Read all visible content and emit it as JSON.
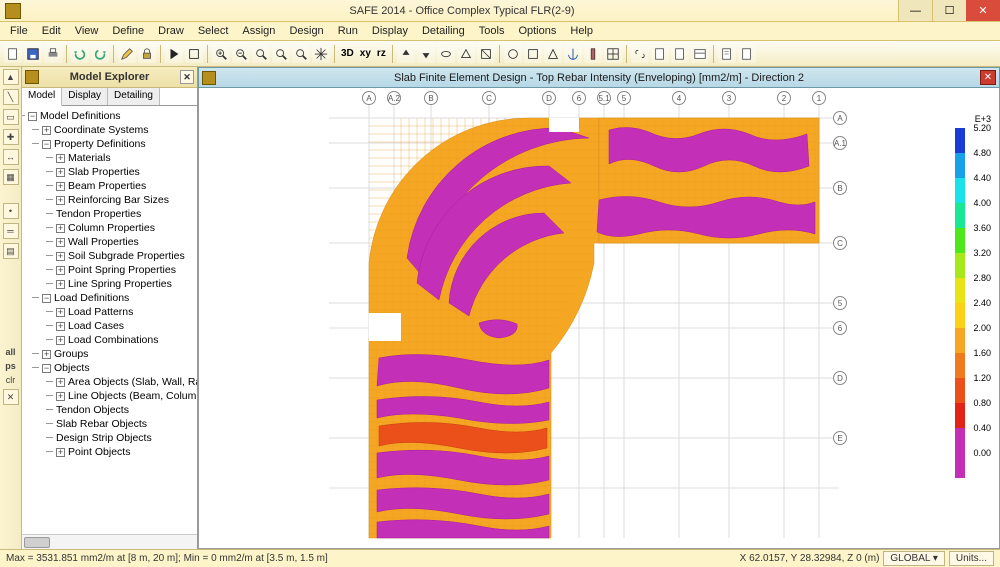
{
  "window": {
    "title": "SAFE 2014 - Office Complex Typical FLR(2-9)",
    "min": "—",
    "max": "☐",
    "close": "✕"
  },
  "menus": [
    "File",
    "Edit",
    "View",
    "Define",
    "Draw",
    "Select",
    "Assign",
    "Design",
    "Run",
    "Display",
    "Detailing",
    "Tools",
    "Options",
    "Help"
  ],
  "toolbar_text": {
    "threeD": "3D",
    "xy": "xy",
    "rz": "rz"
  },
  "explorer": {
    "title": "Model Explorer",
    "tabs": [
      "Model",
      "Display",
      "Detailing"
    ],
    "root": "Model Definitions",
    "items": {
      "coord": "Coordinate Systems",
      "propdef": "Property Definitions",
      "materials": "Materials",
      "slabprop": "Slab Properties",
      "beamprop": "Beam Properties",
      "rebar": "Reinforcing Bar Sizes",
      "tendon": "Tendon Properties",
      "column": "Column Properties",
      "wall": "Wall Properties",
      "soil": "Soil Subgrade Properties",
      "pointspr": "Point Spring Properties",
      "linespr": "Line Spring Properties",
      "loaddef": "Load Definitions",
      "loadpat": "Load Patterns",
      "loadcase": "Load Cases",
      "loadcomb": "Load Combinations",
      "groups": "Groups",
      "objects": "Objects",
      "areaobj": "Area Objects (Slab, Wall, Ramp, Null)",
      "lineobj": "Line Objects (Beam, Column, Brace, Null)",
      "tendonobj": "Tendon Objects",
      "slabrebar": "Slab Rebar Objects",
      "designstrip": "Design Strip Objects",
      "pointobj": "Point Objects"
    }
  },
  "view": {
    "title": "Slab Finite Element Design - Top Rebar Intensity (Enveloping) [mm2/m] - Direction 2",
    "grid_cols": [
      "A",
      "A.2",
      "B",
      "C",
      "D",
      "6",
      "5.1",
      "5",
      "4",
      "3",
      "2",
      "1"
    ],
    "grid_rows": [
      "A",
      "A.1",
      "B",
      "C",
      "5",
      "6",
      "D",
      "E"
    ],
    "colors": {
      "slab_base": "#f5a623",
      "contour_mag": "#c42fb8",
      "contour_red": "#e84a2e",
      "grid": "#dcdcdc"
    }
  },
  "legend": {
    "exp": "E+3",
    "stops": [
      {
        "v": "5.20",
        "c": "#1b3bd6"
      },
      {
        "v": "4.80",
        "c": "#1aa0e8"
      },
      {
        "v": "4.40",
        "c": "#19e3e8"
      },
      {
        "v": "4.00",
        "c": "#19e892"
      },
      {
        "v": "3.60",
        "c": "#4ce819"
      },
      {
        "v": "3.20",
        "c": "#a6e819"
      },
      {
        "v": "2.80",
        "c": "#e8e219"
      },
      {
        "v": "2.40",
        "c": "#fdd018"
      },
      {
        "v": "2.00",
        "c": "#f5a623"
      },
      {
        "v": "1.60",
        "c": "#f07a1e"
      },
      {
        "v": "1.20",
        "c": "#eb4f1a"
      },
      {
        "v": "0.80",
        "c": "#e22318"
      },
      {
        "v": "0.40",
        "c": "#c42fb8"
      },
      {
        "v": "0.00",
        "c": "#c42fb8"
      }
    ]
  },
  "status": {
    "left": "Max = 3531.851 mm2/m at [8 m, 20 m];   Min = 0 mm2/m at [3.5 m, 1.5 m]",
    "coords": "X 62.0157,  Y 28.32984,  Z 0  (m)",
    "global": "GLOBAL",
    "globarrow": "▾",
    "units": "Units..."
  },
  "leftstrip_labels": [
    "all",
    "ps",
    "clr"
  ]
}
